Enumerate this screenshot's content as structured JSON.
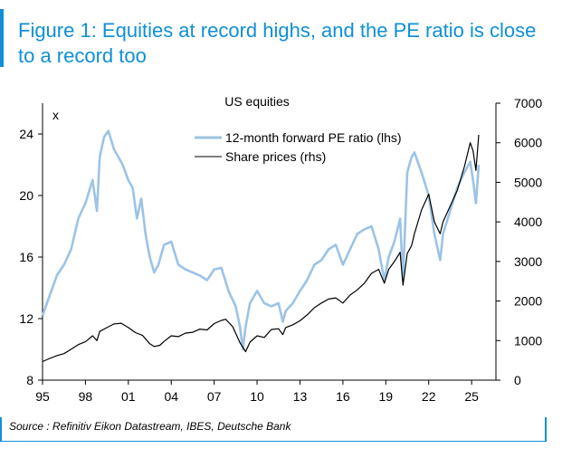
{
  "header": {
    "title": "Figure 1: Equities at record highs, and the PE ratio is close to a record too"
  },
  "footer": {
    "source": "Source : Refinitiv Eikon Datastream, IBES, Deutsche Bank"
  },
  "colors": {
    "accent": "#0f8fd6",
    "pe_line": "#9cc3e6",
    "price_line": "#000000"
  },
  "chart_data": {
    "type": "line",
    "title": "US equities",
    "left_axis": {
      "unit_label": "x",
      "ylim": [
        8,
        26
      ],
      "ticks": [
        8,
        12,
        16,
        20,
        24
      ]
    },
    "right_axis": {
      "ylim": [
        0,
        7000
      ],
      "ticks": [
        0,
        1000,
        2000,
        3000,
        4000,
        5000,
        6000,
        7000
      ]
    },
    "x_axis": {
      "xlim": [
        1995,
        2026.7
      ],
      "tick_values": [
        1995,
        1998,
        2001,
        2004,
        2007,
        2010,
        2013,
        2016,
        2019,
        2022,
        2025
      ],
      "tick_labels": [
        "95",
        "98",
        "01",
        "04",
        "07",
        "10",
        "13",
        "16",
        "19",
        "22",
        "25"
      ]
    },
    "legend_position": "top-center",
    "series": [
      {
        "name": "12-month forward PE ratio (lhs)",
        "axis": "left",
        "x": [
          1995.0,
          1995.5,
          1996.0,
          1996.5,
          1997.0,
          1997.5,
          1998.0,
          1998.5,
          1998.8,
          1999.0,
          1999.3,
          1999.6,
          2000.0,
          2000.3,
          2000.6,
          2001.0,
          2001.3,
          2001.6,
          2001.9,
          2002.2,
          2002.5,
          2002.8,
          2003.1,
          2003.5,
          2004.0,
          2004.5,
          2005.0,
          2005.5,
          2006.0,
          2006.5,
          2007.0,
          2007.5,
          2008.0,
          2008.5,
          2008.8,
          2009.0,
          2009.2,
          2009.5,
          2010.0,
          2010.5,
          2011.0,
          2011.5,
          2011.8,
          2012.0,
          2012.5,
          2013.0,
          2013.5,
          2014.0,
          2014.5,
          2015.0,
          2015.5,
          2016.0,
          2016.5,
          2017.0,
          2017.5,
          2018.0,
          2018.5,
          2018.9,
          2019.2,
          2019.6,
          2020.0,
          2020.2,
          2020.5,
          2020.8,
          2021.0,
          2021.5,
          2022.0,
          2022.4,
          2022.8,
          2023.0,
          2023.5,
          2024.0,
          2024.5,
          2024.9,
          2025.1,
          2025.3,
          2025.5
        ],
        "y": [
          12.2,
          13.5,
          14.8,
          15.5,
          16.5,
          18.5,
          19.5,
          21.0,
          19.0,
          22.5,
          23.8,
          24.2,
          23.0,
          22.5,
          22.0,
          21.0,
          20.5,
          18.5,
          19.8,
          17.5,
          16.0,
          15.0,
          15.5,
          16.8,
          17.0,
          15.5,
          15.2,
          15.0,
          14.8,
          14.5,
          15.2,
          15.3,
          13.8,
          12.8,
          11.5,
          10.0,
          11.5,
          13.0,
          13.8,
          13.0,
          12.8,
          13.0,
          11.8,
          12.5,
          13.0,
          13.8,
          14.5,
          15.5,
          15.8,
          16.5,
          16.8,
          15.5,
          16.5,
          17.5,
          17.8,
          18.0,
          16.5,
          14.5,
          16.0,
          17.0,
          18.5,
          14.5,
          21.5,
          22.5,
          22.8,
          21.5,
          20.0,
          17.5,
          15.8,
          17.5,
          19.0,
          20.5,
          21.5,
          22.2,
          21.0,
          19.5,
          22.0
        ]
      },
      {
        "name": "Share prices (rhs)",
        "axis": "right",
        "x": [
          1995.0,
          1995.5,
          1996.0,
          1996.5,
          1997.0,
          1997.5,
          1998.0,
          1998.5,
          1998.8,
          1999.0,
          1999.5,
          2000.0,
          2000.5,
          2001.0,
          2001.5,
          2002.0,
          2002.5,
          2002.8,
          2003.2,
          2003.5,
          2004.0,
          2004.5,
          2005.0,
          2005.5,
          2006.0,
          2006.5,
          2007.0,
          2007.5,
          2007.8,
          2008.3,
          2008.8,
          2009.2,
          2009.5,
          2010.0,
          2010.5,
          2011.0,
          2011.5,
          2011.8,
          2012.0,
          2012.5,
          2013.0,
          2013.5,
          2014.0,
          2014.5,
          2015.0,
          2015.5,
          2016.0,
          2016.5,
          2017.0,
          2017.5,
          2018.0,
          2018.5,
          2018.9,
          2019.2,
          2019.6,
          2020.0,
          2020.2,
          2020.5,
          2020.8,
          2021.0,
          2021.5,
          2022.0,
          2022.4,
          2022.8,
          2023.0,
          2023.5,
          2024.0,
          2024.5,
          2024.9,
          2025.1,
          2025.3,
          2025.5
        ],
        "y": [
          470,
          550,
          620,
          670,
          780,
          900,
          970,
          1120,
          1000,
          1230,
          1330,
          1420,
          1440,
          1330,
          1200,
          1130,
          920,
          850,
          880,
          980,
          1120,
          1100,
          1190,
          1210,
          1290,
          1270,
          1430,
          1510,
          1540,
          1350,
          950,
          720,
          960,
          1120,
          1080,
          1280,
          1300,
          1150,
          1330,
          1400,
          1500,
          1650,
          1830,
          1950,
          2050,
          2080,
          1950,
          2150,
          2280,
          2450,
          2700,
          2800,
          2450,
          2800,
          3000,
          3230,
          2400,
          3200,
          3400,
          3700,
          4300,
          4700,
          4000,
          3700,
          4000,
          4400,
          4800,
          5400,
          6000,
          5800,
          5300,
          6200
        ]
      }
    ]
  }
}
